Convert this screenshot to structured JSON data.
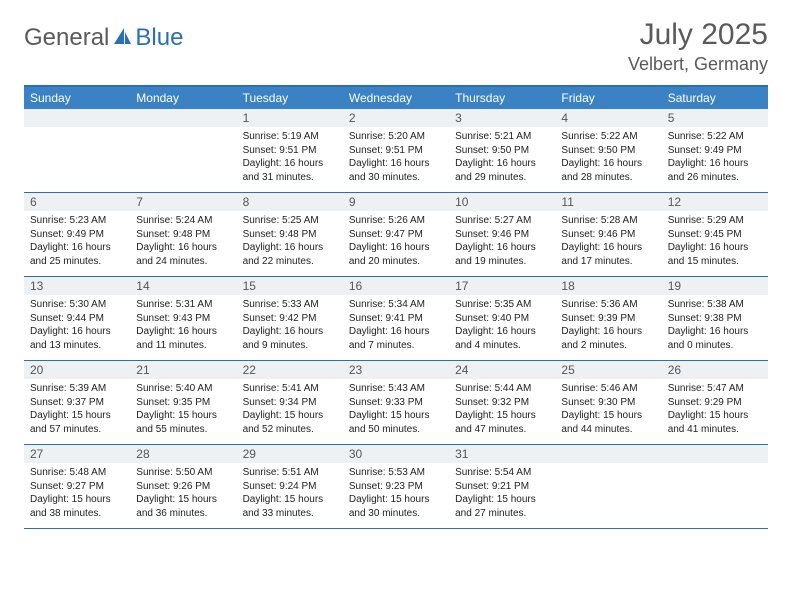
{
  "brand": {
    "part1": "General",
    "part2": "Blue"
  },
  "colors": {
    "header_bg": "#3b82c4",
    "border": "#2a6fb5",
    "daynum_bg": "#eef1f4",
    "text_dark": "#222222",
    "text_med": "#5a5a5a"
  },
  "title": "July 2025",
  "location": "Velbert, Germany",
  "days_of_week": [
    "Sunday",
    "Monday",
    "Tuesday",
    "Wednesday",
    "Thursday",
    "Friday",
    "Saturday"
  ],
  "weeks": [
    [
      null,
      null,
      {
        "n": "1",
        "sr": "Sunrise: 5:19 AM",
        "ss": "Sunset: 9:51 PM",
        "dl": "Daylight: 16 hours and 31 minutes."
      },
      {
        "n": "2",
        "sr": "Sunrise: 5:20 AM",
        "ss": "Sunset: 9:51 PM",
        "dl": "Daylight: 16 hours and 30 minutes."
      },
      {
        "n": "3",
        "sr": "Sunrise: 5:21 AM",
        "ss": "Sunset: 9:50 PM",
        "dl": "Daylight: 16 hours and 29 minutes."
      },
      {
        "n": "4",
        "sr": "Sunrise: 5:22 AM",
        "ss": "Sunset: 9:50 PM",
        "dl": "Daylight: 16 hours and 28 minutes."
      },
      {
        "n": "5",
        "sr": "Sunrise: 5:22 AM",
        "ss": "Sunset: 9:49 PM",
        "dl": "Daylight: 16 hours and 26 minutes."
      }
    ],
    [
      {
        "n": "6",
        "sr": "Sunrise: 5:23 AM",
        "ss": "Sunset: 9:49 PM",
        "dl": "Daylight: 16 hours and 25 minutes."
      },
      {
        "n": "7",
        "sr": "Sunrise: 5:24 AM",
        "ss": "Sunset: 9:48 PM",
        "dl": "Daylight: 16 hours and 24 minutes."
      },
      {
        "n": "8",
        "sr": "Sunrise: 5:25 AM",
        "ss": "Sunset: 9:48 PM",
        "dl": "Daylight: 16 hours and 22 minutes."
      },
      {
        "n": "9",
        "sr": "Sunrise: 5:26 AM",
        "ss": "Sunset: 9:47 PM",
        "dl": "Daylight: 16 hours and 20 minutes."
      },
      {
        "n": "10",
        "sr": "Sunrise: 5:27 AM",
        "ss": "Sunset: 9:46 PM",
        "dl": "Daylight: 16 hours and 19 minutes."
      },
      {
        "n": "11",
        "sr": "Sunrise: 5:28 AM",
        "ss": "Sunset: 9:46 PM",
        "dl": "Daylight: 16 hours and 17 minutes."
      },
      {
        "n": "12",
        "sr": "Sunrise: 5:29 AM",
        "ss": "Sunset: 9:45 PM",
        "dl": "Daylight: 16 hours and 15 minutes."
      }
    ],
    [
      {
        "n": "13",
        "sr": "Sunrise: 5:30 AM",
        "ss": "Sunset: 9:44 PM",
        "dl": "Daylight: 16 hours and 13 minutes."
      },
      {
        "n": "14",
        "sr": "Sunrise: 5:31 AM",
        "ss": "Sunset: 9:43 PM",
        "dl": "Daylight: 16 hours and 11 minutes."
      },
      {
        "n": "15",
        "sr": "Sunrise: 5:33 AM",
        "ss": "Sunset: 9:42 PM",
        "dl": "Daylight: 16 hours and 9 minutes."
      },
      {
        "n": "16",
        "sr": "Sunrise: 5:34 AM",
        "ss": "Sunset: 9:41 PM",
        "dl": "Daylight: 16 hours and 7 minutes."
      },
      {
        "n": "17",
        "sr": "Sunrise: 5:35 AM",
        "ss": "Sunset: 9:40 PM",
        "dl": "Daylight: 16 hours and 4 minutes."
      },
      {
        "n": "18",
        "sr": "Sunrise: 5:36 AM",
        "ss": "Sunset: 9:39 PM",
        "dl": "Daylight: 16 hours and 2 minutes."
      },
      {
        "n": "19",
        "sr": "Sunrise: 5:38 AM",
        "ss": "Sunset: 9:38 PM",
        "dl": "Daylight: 16 hours and 0 minutes."
      }
    ],
    [
      {
        "n": "20",
        "sr": "Sunrise: 5:39 AM",
        "ss": "Sunset: 9:37 PM",
        "dl": "Daylight: 15 hours and 57 minutes."
      },
      {
        "n": "21",
        "sr": "Sunrise: 5:40 AM",
        "ss": "Sunset: 9:35 PM",
        "dl": "Daylight: 15 hours and 55 minutes."
      },
      {
        "n": "22",
        "sr": "Sunrise: 5:41 AM",
        "ss": "Sunset: 9:34 PM",
        "dl": "Daylight: 15 hours and 52 minutes."
      },
      {
        "n": "23",
        "sr": "Sunrise: 5:43 AM",
        "ss": "Sunset: 9:33 PM",
        "dl": "Daylight: 15 hours and 50 minutes."
      },
      {
        "n": "24",
        "sr": "Sunrise: 5:44 AM",
        "ss": "Sunset: 9:32 PM",
        "dl": "Daylight: 15 hours and 47 minutes."
      },
      {
        "n": "25",
        "sr": "Sunrise: 5:46 AM",
        "ss": "Sunset: 9:30 PM",
        "dl": "Daylight: 15 hours and 44 minutes."
      },
      {
        "n": "26",
        "sr": "Sunrise: 5:47 AM",
        "ss": "Sunset: 9:29 PM",
        "dl": "Daylight: 15 hours and 41 minutes."
      }
    ],
    [
      {
        "n": "27",
        "sr": "Sunrise: 5:48 AM",
        "ss": "Sunset: 9:27 PM",
        "dl": "Daylight: 15 hours and 38 minutes."
      },
      {
        "n": "28",
        "sr": "Sunrise: 5:50 AM",
        "ss": "Sunset: 9:26 PM",
        "dl": "Daylight: 15 hours and 36 minutes."
      },
      {
        "n": "29",
        "sr": "Sunrise: 5:51 AM",
        "ss": "Sunset: 9:24 PM",
        "dl": "Daylight: 15 hours and 33 minutes."
      },
      {
        "n": "30",
        "sr": "Sunrise: 5:53 AM",
        "ss": "Sunset: 9:23 PM",
        "dl": "Daylight: 15 hours and 30 minutes."
      },
      {
        "n": "31",
        "sr": "Sunrise: 5:54 AM",
        "ss": "Sunset: 9:21 PM",
        "dl": "Daylight: 15 hours and 27 minutes."
      },
      null,
      null
    ]
  ]
}
